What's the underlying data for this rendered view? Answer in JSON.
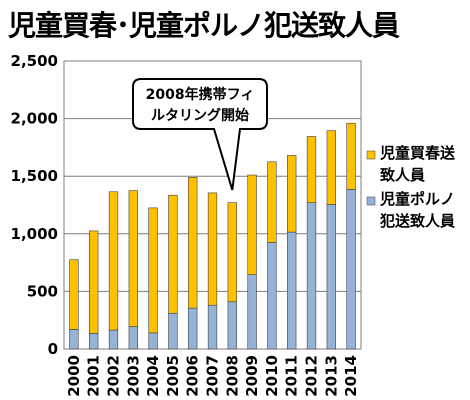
{
  "chart_data": {
    "type": "bar",
    "stacked": true,
    "title": "児童買春･児童ポルノ犯送致人員",
    "xlabel": "",
    "ylabel": "",
    "categories": [
      "2000",
      "2001",
      "2002",
      "2003",
      "2004",
      "2005",
      "2006",
      "2007",
      "2008",
      "2009",
      "2010",
      "2011",
      "2012",
      "2013",
      "2014"
    ],
    "ylim": [
      0,
      2500
    ],
    "yticks": [
      0,
      500,
      1000,
      1500,
      2000,
      2500
    ],
    "ytick_labels": [
      "0",
      "500",
      "1,000",
      "1,500",
      "2,000",
      "2,500"
    ],
    "grid": true,
    "legend_position": "right",
    "series": [
      {
        "name": "児童ポルノ犯送致人員",
        "legend_lines": [
          "児童ポルノ",
          "犯送致人員"
        ],
        "color": "#95b3d7",
        "values": [
          170,
          135,
          165,
          195,
          140,
          310,
          355,
          380,
          410,
          645,
          925,
          1015,
          1270,
          1255,
          1385
        ]
      },
      {
        "name": "児童買春送致人員",
        "legend_lines": [
          "児童買春送",
          "致人員"
        ],
        "color": "#ffc000",
        "values": [
          605,
          890,
          1200,
          1180,
          1085,
          1025,
          1135,
          975,
          860,
          865,
          700,
          665,
          575,
          640,
          575
        ]
      }
    ],
    "annotation": {
      "lines": [
        "2008年携帯フィ",
        "ルタリング開始"
      ],
      "target_category": "2008"
    }
  }
}
